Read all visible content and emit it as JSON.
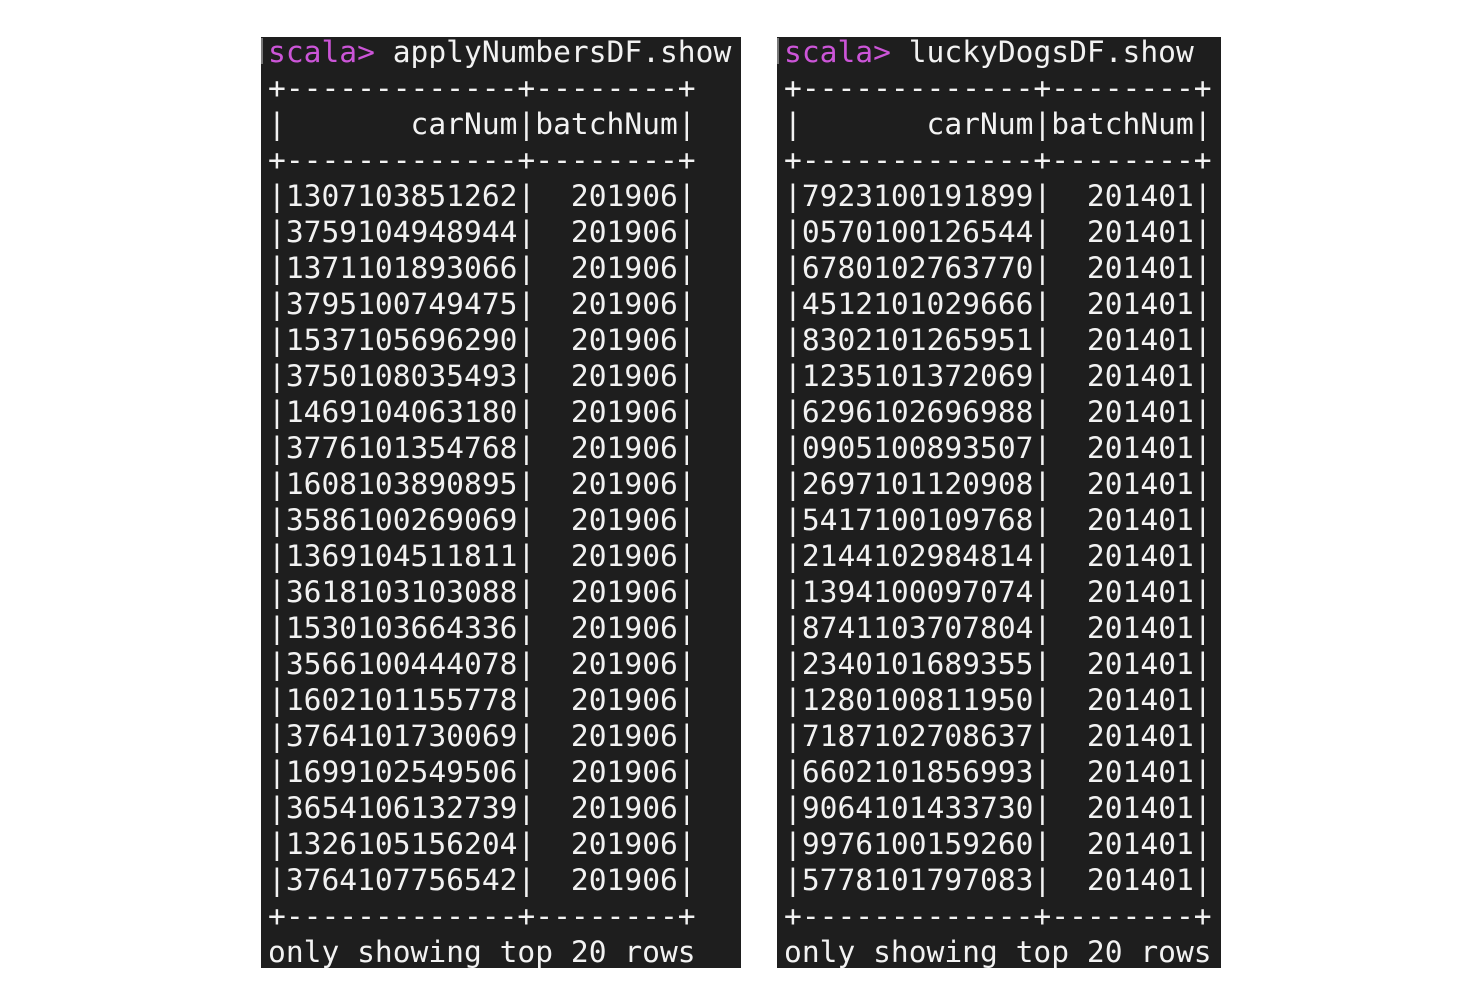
{
  "colors": {
    "background": "#1e1e1e",
    "text": "#f2f2f2",
    "prompt": "#cc55d8"
  },
  "table_border": "+-------------+--------+",
  "column_separator": "|",
  "panels": [
    {
      "prompt": "scala>",
      "command": "applyNumbersDF.show",
      "headers": [
        "carNum",
        "batchNum"
      ],
      "rows": [
        [
          "1307103851262",
          "201906"
        ],
        [
          "3759104948944",
          "201906"
        ],
        [
          "1371101893066",
          "201906"
        ],
        [
          "3795100749475",
          "201906"
        ],
        [
          "1537105696290",
          "201906"
        ],
        [
          "3750108035493",
          "201906"
        ],
        [
          "1469104063180",
          "201906"
        ],
        [
          "3776101354768",
          "201906"
        ],
        [
          "1608103890895",
          "201906"
        ],
        [
          "3586100269069",
          "201906"
        ],
        [
          "1369104511811",
          "201906"
        ],
        [
          "3618103103088",
          "201906"
        ],
        [
          "1530103664336",
          "201906"
        ],
        [
          "3566100444078",
          "201906"
        ],
        [
          "1602101155778",
          "201906"
        ],
        [
          "3764101730069",
          "201906"
        ],
        [
          "1699102549506",
          "201906"
        ],
        [
          "3654106132739",
          "201906"
        ],
        [
          "1326105156204",
          "201906"
        ],
        [
          "3764107756542",
          "201906"
        ]
      ],
      "footer": "only showing top 20 rows"
    },
    {
      "prompt": "scala>",
      "command": "luckyDogsDF.show",
      "headers": [
        "carNum",
        "batchNum"
      ],
      "rows": [
        [
          "7923100191899",
          "201401"
        ],
        [
          "0570100126544",
          "201401"
        ],
        [
          "6780102763770",
          "201401"
        ],
        [
          "4512101029666",
          "201401"
        ],
        [
          "8302101265951",
          "201401"
        ],
        [
          "1235101372069",
          "201401"
        ],
        [
          "6296102696988",
          "201401"
        ],
        [
          "0905100893507",
          "201401"
        ],
        [
          "2697101120908",
          "201401"
        ],
        [
          "5417100109768",
          "201401"
        ],
        [
          "2144102984814",
          "201401"
        ],
        [
          "1394100097074",
          "201401"
        ],
        [
          "8741103707804",
          "201401"
        ],
        [
          "2340101689355",
          "201401"
        ],
        [
          "1280100811950",
          "201401"
        ],
        [
          "7187102708637",
          "201401"
        ],
        [
          "6602101856993",
          "201401"
        ],
        [
          "9064101433730",
          "201401"
        ],
        [
          "9976100159260",
          "201401"
        ],
        [
          "5778101797083",
          "201401"
        ]
      ],
      "footer": "only showing top 20 rows"
    }
  ]
}
